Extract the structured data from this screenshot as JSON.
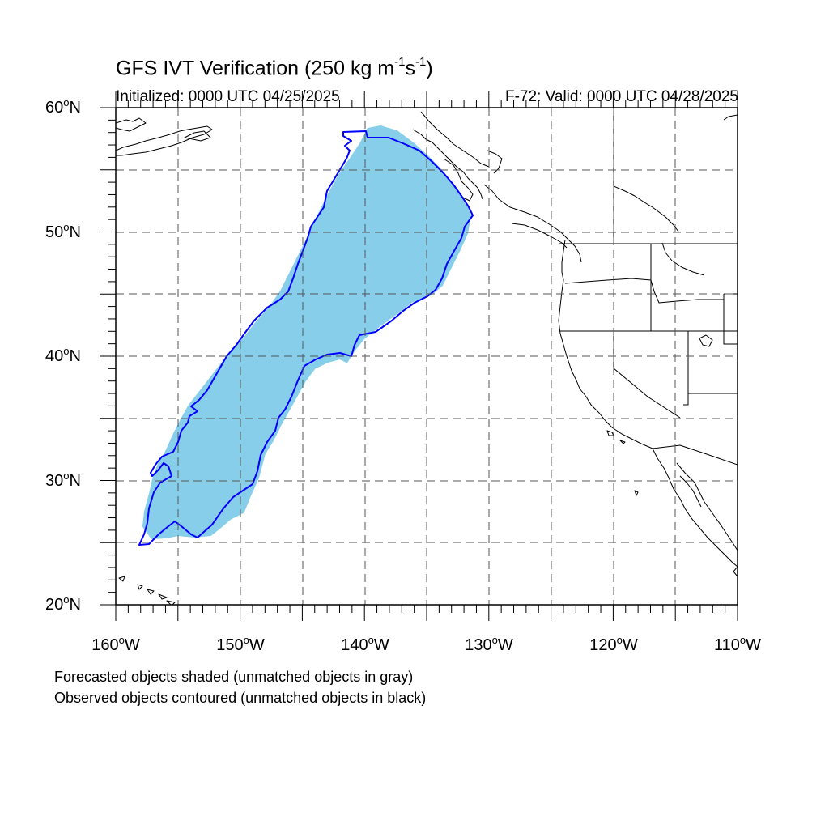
{
  "title": {
    "main": "GFS IVT Verification (250 kg m",
    "exp1": "-1",
    "mid": "s",
    "exp2": "-1",
    "end": ")"
  },
  "initialized": "Initialized: 0000 UTC 04/25/2025",
  "valid": "F-72: Valid: 0000 UTC 04/28/2025",
  "lat_labels": [
    "60",
    "50",
    "40",
    "30",
    "20"
  ],
  "lat_suffix": "N",
  "lon_labels": [
    "160",
    "150",
    "140",
    "130",
    "120",
    "110"
  ],
  "lon_suffix": "W",
  "degree_symbol": "o",
  "legend": {
    "line1": "Forecasted objects shaded (unmatched objects in gray)",
    "line2": "Observed objects contoured (unmatched objects in black)"
  },
  "colors": {
    "forecast_fill": "#87ceea",
    "observed_contour": "#0000ff",
    "coastline": "#000000",
    "grid": "#555555"
  },
  "map": {
    "lon_range": [
      -160,
      -110
    ],
    "lat_range": [
      20,
      60
    ],
    "grid_lons": [
      -155,
      -150,
      -145,
      -140,
      -135,
      -130,
      -125,
      -120,
      -115
    ],
    "grid_lats": [
      25,
      30,
      35,
      40,
      45,
      50,
      55
    ]
  }
}
